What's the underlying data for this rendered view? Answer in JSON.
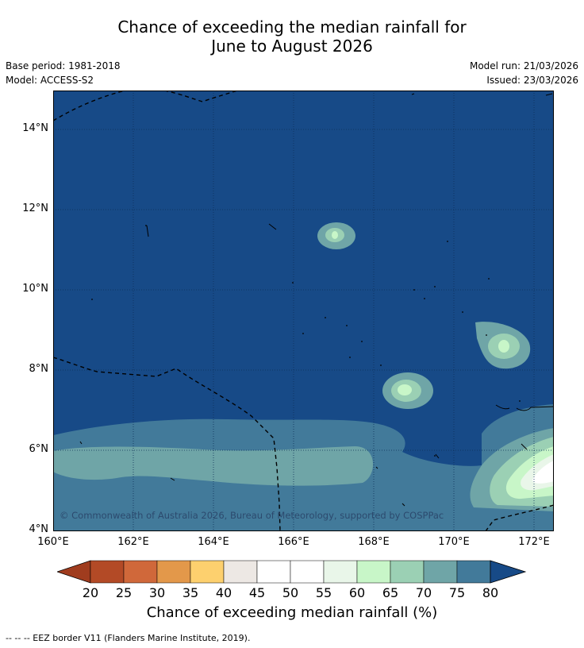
{
  "header": {
    "title_line1": "Chance of exceeding the median rainfall for",
    "title_line2": "June to August 2026",
    "base_period": "Base period: 1981-2018",
    "model": "Model: ACCESS-S2",
    "model_run": "Model run: 21/03/2026",
    "issued": "Issued: 23/03/2026"
  },
  "axes": {
    "lat_labels": [
      "14°N",
      "12°N",
      "10°N",
      "8°N",
      "6°N",
      "4°N"
    ],
    "lon_labels": [
      "160°E",
      "162°E",
      "164°E",
      "166°E",
      "168°E",
      "170°E",
      "172°E"
    ]
  },
  "map": {
    "copyright": "© Commonwealth of Australia 2026, Bureau of Meteorology, supported by COSPPac",
    "background_color": "#174a87",
    "grid": "on"
  },
  "colorbar": {
    "ticks": [
      "20",
      "25",
      "30",
      "35",
      "40",
      "45",
      "50",
      "55",
      "60",
      "65",
      "70",
      "75",
      "80"
    ],
    "colors": [
      "#b34a26",
      "#d0683a",
      "#e3984a",
      "#fdd06e",
      "#ede8e4",
      "#ffffff",
      "#ffffff",
      "#e9f6e9",
      "#c8f6c8",
      "#9bd0b4",
      "#6fa5a7",
      "#427a9a"
    ],
    "low_extend_color": "#a03c1e",
    "high_extend_color": "#174a87",
    "label": "Chance of exceeding median rainfall (%)"
  },
  "footer": {
    "legend": "--  --  -- EEZ border V11 (Flanders Marine Institute, 2019)."
  }
}
